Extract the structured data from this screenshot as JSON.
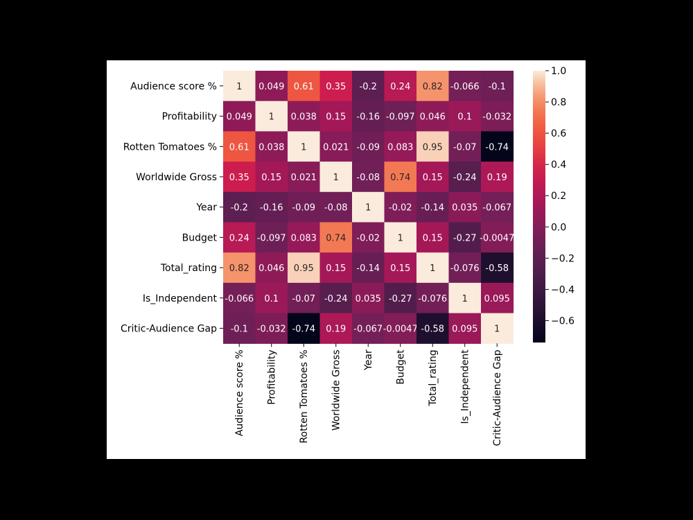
{
  "chart_data": {
    "type": "heatmap",
    "labels": [
      "Audience score %",
      "Profitability",
      "Rotten Tomatoes %",
      "Worldwide Gross",
      "Year",
      "Budget",
      "Total_rating",
      "Is_Independent",
      "Critic-Audience Gap"
    ],
    "values": [
      [
        1,
        0.049,
        0.61,
        0.35,
        -0.2,
        0.24,
        0.82,
        -0.066,
        -0.1
      ],
      [
        0.049,
        1,
        0.038,
        0.15,
        -0.16,
        -0.097,
        0.046,
        0.1,
        -0.032
      ],
      [
        0.61,
        0.038,
        1,
        0.021,
        -0.09,
        0.083,
        0.95,
        -0.07,
        -0.74
      ],
      [
        0.35,
        0.15,
        0.021,
        1,
        -0.08,
        0.74,
        0.15,
        -0.24,
        0.19
      ],
      [
        -0.2,
        -0.16,
        -0.09,
        -0.08,
        1,
        -0.02,
        -0.14,
        0.035,
        -0.067
      ],
      [
        0.24,
        -0.097,
        0.083,
        0.74,
        -0.02,
        1,
        0.15,
        -0.27,
        -0.0047
      ],
      [
        0.82,
        0.046,
        0.95,
        0.15,
        -0.14,
        0.15,
        1,
        -0.076,
        -0.58
      ],
      [
        -0.066,
        0.1,
        -0.07,
        -0.24,
        0.035,
        -0.27,
        -0.076,
        1,
        0.095
      ],
      [
        -0.1,
        -0.032,
        -0.74,
        0.19,
        -0.067,
        -0.0047,
        -0.58,
        0.095,
        1
      ]
    ],
    "annotations": [
      [
        "1",
        "0.049",
        "0.61",
        "0.35",
        "-0.2",
        "0.24",
        "0.82",
        "-0.066",
        "-0.1"
      ],
      [
        "0.049",
        "1",
        "0.038",
        "0.15",
        "-0.16",
        "-0.097",
        "0.046",
        "0.1",
        "-0.032"
      ],
      [
        "0.61",
        "0.038",
        "1",
        "0.021",
        "-0.09",
        "0.083",
        "0.95",
        "-0.07",
        "-0.74"
      ],
      [
        "0.35",
        "0.15",
        "0.021",
        "1",
        "-0.08",
        "0.74",
        "0.15",
        "-0.24",
        "0.19"
      ],
      [
        "-0.2",
        "-0.16",
        "-0.09",
        "-0.08",
        "1",
        "-0.02",
        "-0.14",
        "0.035",
        "-0.067"
      ],
      [
        "0.24",
        "-0.097",
        "0.083",
        "0.74",
        "-0.02",
        "1",
        "0.15",
        "-0.27",
        "-0.0047"
      ],
      [
        "0.82",
        "0.046",
        "0.95",
        "0.15",
        "-0.14",
        "0.15",
        "1",
        "-0.076",
        "-0.58"
      ],
      [
        "-0.066",
        "0.1",
        "-0.07",
        "-0.24",
        "0.035",
        "-0.27",
        "-0.076",
        "1",
        "0.095"
      ],
      [
        "-0.1",
        "-0.032",
        "-0.74",
        "0.19",
        "-0.067",
        "-0.0047",
        "-0.58",
        "0.095",
        "1"
      ]
    ],
    "colormap": "rocket",
    "vmin": -0.74,
    "vmax": 1.0,
    "colorbar_ticks": [
      1.0,
      0.8,
      0.6,
      0.4,
      0.2,
      0.0,
      -0.2,
      -0.4,
      -0.6
    ],
    "colorbar_tick_labels": [
      "1.0",
      "0.8",
      "0.6",
      "0.4",
      "0.2",
      "0.0",
      "−0.2",
      "−0.4",
      "−0.6"
    ]
  }
}
